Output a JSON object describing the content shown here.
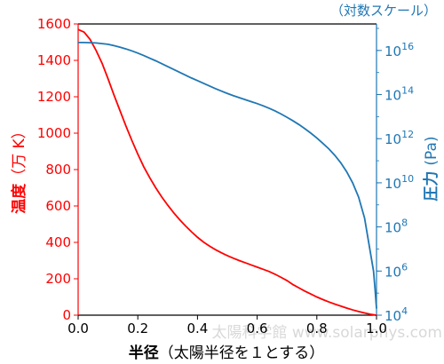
{
  "chart_data": {
    "type": "line",
    "xlabel_main": "半径",
    "xlabel_sub": "（太陽半径を１とする）",
    "ylabel_left_main": "温度",
    "ylabel_left_unit": "（万 K）",
    "ylabel_right_main": "圧力",
    "ylabel_right_unit": "(Pa)",
    "right_axis_note": "（対数スケール）",
    "xlim": [
      0,
      1.0
    ],
    "ylim_left": [
      0,
      1600
    ],
    "ylim_right_log10": [
      4,
      17.2
    ],
    "x_ticks": [
      "0.0",
      "0.2",
      "0.4",
      "0.6",
      "0.8",
      "1.0"
    ],
    "left_ticks": [
      "0",
      "200",
      "400",
      "600",
      "800",
      "1000",
      "1200",
      "1400",
      "1600"
    ],
    "right_ticks_base": [
      "10",
      "10",
      "10",
      "10",
      "10",
      "10",
      "10"
    ],
    "right_ticks_exp": [
      "4",
      "6",
      "8",
      "10",
      "12",
      "14",
      "16"
    ],
    "grid": false,
    "series": [
      {
        "axis": "left",
        "color": "#ff0000",
        "x": [
          0,
          0.02,
          0.04,
          0.06,
          0.08,
          0.1,
          0.12,
          0.14,
          0.16,
          0.18,
          0.2,
          0.22,
          0.24,
          0.26,
          0.28,
          0.3,
          0.32,
          0.34,
          0.36,
          0.38,
          0.4,
          0.42,
          0.44,
          0.46,
          0.48,
          0.5,
          0.52,
          0.54,
          0.56,
          0.58,
          0.6,
          0.62,
          0.64,
          0.66,
          0.68,
          0.7,
          0.72,
          0.74,
          0.76,
          0.78,
          0.8,
          0.82,
          0.84,
          0.86,
          0.88,
          0.9,
          0.92,
          0.94,
          0.96,
          0.98,
          1.0
        ],
        "values": [
          1570,
          1555,
          1515,
          1455,
          1385,
          1300,
          1210,
          1125,
          1040,
          960,
          885,
          815,
          755,
          700,
          650,
          605,
          563,
          525,
          490,
          458,
          428,
          402,
          380,
          360,
          343,
          327,
          313,
          300,
          288,
          276,
          264,
          252,
          240,
          225,
          208,
          190,
          168,
          150,
          132,
          116,
          100,
          86,
          73,
          61,
          50,
          39,
          29,
          20,
          12,
          5,
          0
        ]
      },
      {
        "axis": "right",
        "color": "#1f77b4",
        "x": [
          0,
          0.02,
          0.04,
          0.06,
          0.08,
          0.1,
          0.12,
          0.14,
          0.16,
          0.18,
          0.2,
          0.22,
          0.24,
          0.26,
          0.28,
          0.3,
          0.32,
          0.34,
          0.36,
          0.38,
          0.4,
          0.42,
          0.44,
          0.46,
          0.48,
          0.5,
          0.52,
          0.54,
          0.56,
          0.58,
          0.6,
          0.62,
          0.64,
          0.66,
          0.68,
          0.7,
          0.72,
          0.74,
          0.76,
          0.78,
          0.8,
          0.82,
          0.84,
          0.86,
          0.88,
          0.9,
          0.92,
          0.94,
          0.96,
          0.97,
          0.98,
          0.99,
          0.995,
          1.0
        ],
        "values_log10": [
          16.36,
          16.36,
          16.35,
          16.34,
          16.31,
          16.28,
          16.22,
          16.15,
          16.07,
          15.98,
          15.88,
          15.77,
          15.65,
          15.53,
          15.4,
          15.27,
          15.14,
          15.01,
          14.88,
          14.75,
          14.63,
          14.51,
          14.39,
          14.27,
          14.16,
          14.05,
          13.95,
          13.86,
          13.77,
          13.68,
          13.59,
          13.49,
          13.38,
          13.26,
          13.12,
          12.97,
          12.81,
          12.64,
          12.45,
          12.25,
          12.03,
          11.79,
          11.54,
          11.25,
          10.91,
          10.5,
          10.0,
          9.35,
          8.4,
          7.6,
          6.8,
          6.0,
          5.2,
          4.3
        ]
      }
    ]
  },
  "watermark_text": "太陽科学館 www.solarphys.com"
}
